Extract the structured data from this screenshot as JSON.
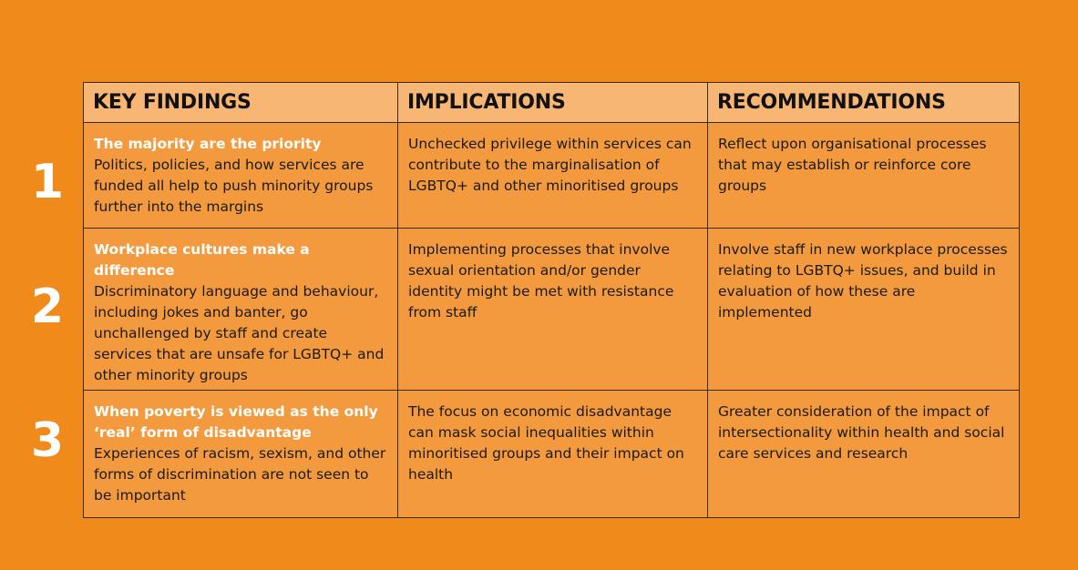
{
  "headers": {
    "key_findings": "KEY FINDINGS",
    "implications": "IMPLICATIONS",
    "recommendations": "RECOMMENDATIONS"
  },
  "rows": [
    {
      "number": "1",
      "finding_title": "The majority are the priority",
      "finding_body": "Politics, policies, and how services are funded all help to push minority groups further into the margins",
      "implication": "Unchecked privilege within services can contribute to the marginalisation of LGBTQ+ and other minoritised groups",
      "recommendation": "Reflect upon organisational processes that may establish or reinforce core groups"
    },
    {
      "number": "2",
      "finding_title": "Workplace cultures make a difference",
      "finding_body": "Discriminatory language and behaviour, including jokes and banter, go unchallenged by staff and create services that are unsafe for LGBTQ+ and other minority groups",
      "implication": "Implementing processes that involve sexual orientation and/or gender identity might be met with resistance from staff",
      "recommendation": "Involve staff in new workplace processes relating to LGBTQ+ issues, and build in evaluation of how these are implemented"
    },
    {
      "number": "3",
      "finding_title": "When poverty is viewed as the only ‘real’ form of disadvantage",
      "finding_body": "Experiences of racism, sexism, and other forms of discrimination are not seen to be important",
      "implication": "The focus on economic disadvantage can mask social inequalities within minoritised groups and their impact on health",
      "recommendation": "Greater consideration of the impact of intersectionality within health and social care services and research"
    }
  ],
  "colors": {
    "background": "#f08a1a",
    "header_fill": "#f7b673",
    "cell_fill": "#f39a3e",
    "title_text": "#ffffff"
  }
}
